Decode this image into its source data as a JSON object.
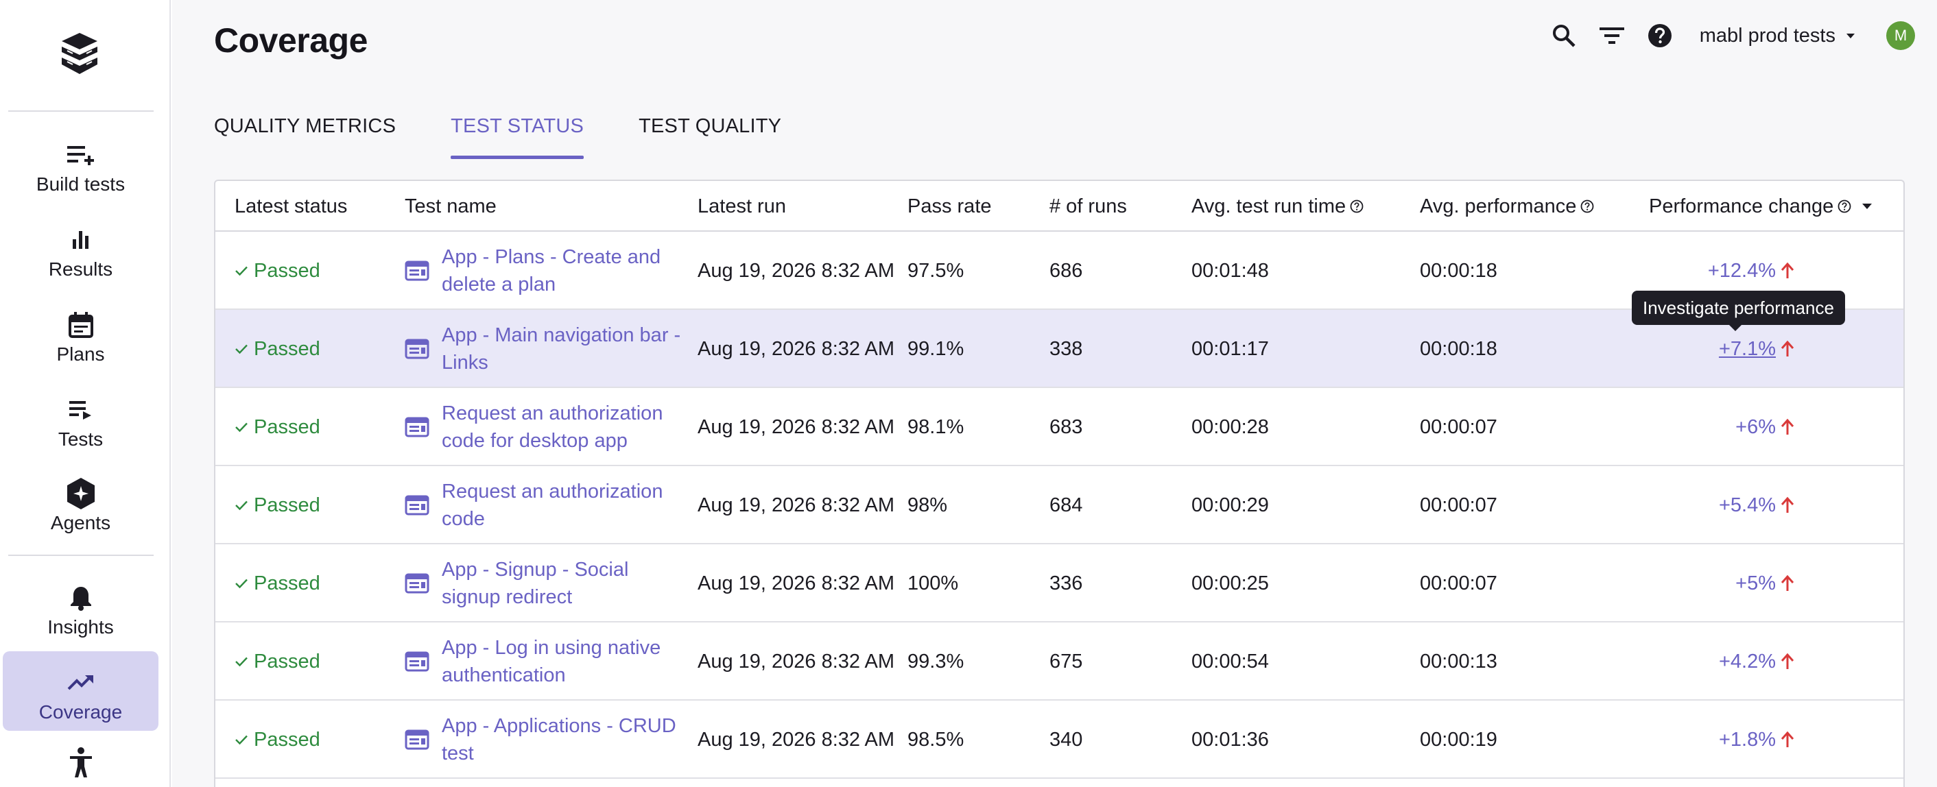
{
  "sidebar": {
    "logo_name": "mabl-logo",
    "items": [
      {
        "label": "Build tests",
        "icon": "playlist-add-icon",
        "active": false
      },
      {
        "label": "Results",
        "icon": "bar-chart-icon",
        "active": false
      },
      {
        "label": "Plans",
        "icon": "calendar-icon",
        "active": false
      },
      {
        "label": "Tests",
        "icon": "playlist-play-icon",
        "active": false
      },
      {
        "label": "Agents",
        "icon": "sparkle-hexagon-icon",
        "active": false
      },
      {
        "label": "Insights",
        "icon": "bell-icon",
        "active": false
      },
      {
        "label": "Coverage",
        "icon": "trending-up-icon",
        "active": true
      },
      {
        "label": "",
        "icon": "accessibility-icon",
        "active": false
      }
    ]
  },
  "header": {
    "title": "Coverage",
    "workspace": "mabl prod tests",
    "avatar_initial": "M",
    "avatar_color": "#5f9e3a"
  },
  "tabs": [
    {
      "label": "QUALITY METRICS",
      "active": false
    },
    {
      "label": "TEST STATUS",
      "active": true
    },
    {
      "label": "TEST QUALITY",
      "active": false
    }
  ],
  "table": {
    "columns": [
      "Latest status",
      "Test name",
      "Latest run",
      "Pass rate",
      "# of runs",
      "Avg. test run time",
      "Avg. performance",
      "Performance change"
    ],
    "rows": [
      {
        "status": "Passed",
        "name": "App - Plans - Create and delete a plan",
        "latest_run": "Aug 19, 2026 8:32 AM",
        "pass_rate": "97.5%",
        "runs": "686",
        "avg_time": "00:01:48",
        "avg_perf": "00:00:18",
        "perf_change": "+12.4%"
      },
      {
        "status": "Passed",
        "name": "App - Main navigation bar - Links",
        "latest_run": "Aug 19, 2026 8:32 AM",
        "pass_rate": "99.1%",
        "runs": "338",
        "avg_time": "00:01:17",
        "avg_perf": "00:00:18",
        "perf_change": "+7.1%"
      },
      {
        "status": "Passed",
        "name": "Request an authorization code for desktop app",
        "latest_run": "Aug 19, 2026 8:32 AM",
        "pass_rate": "98.1%",
        "runs": "683",
        "avg_time": "00:00:28",
        "avg_perf": "00:00:07",
        "perf_change": "+6%"
      },
      {
        "status": "Passed",
        "name": "Request an authorization code",
        "latest_run": "Aug 19, 2026 8:32 AM",
        "pass_rate": "98%",
        "runs": "684",
        "avg_time": "00:00:29",
        "avg_perf": "00:00:07",
        "perf_change": "+5.4%"
      },
      {
        "status": "Passed",
        "name": "App - Signup - Social signup redirect",
        "latest_run": "Aug 19, 2026 8:32 AM",
        "pass_rate": "100%",
        "runs": "336",
        "avg_time": "00:00:25",
        "avg_perf": "00:00:07",
        "perf_change": "+5%"
      },
      {
        "status": "Passed",
        "name": "App - Log in using native authentication",
        "latest_run": "Aug 19, 2026 8:32 AM",
        "pass_rate": "99.3%",
        "runs": "675",
        "avg_time": "00:00:54",
        "avg_perf": "00:00:13",
        "perf_change": "+4.2%"
      },
      {
        "status": "Passed",
        "name": "App - Applications - CRUD test",
        "latest_run": "Aug 19, 2026 8:32 AM",
        "pass_rate": "98.5%",
        "runs": "340",
        "avg_time": "00:01:36",
        "avg_perf": "00:00:19",
        "perf_change": "+1.8%"
      }
    ]
  },
  "tooltip": {
    "text": "Investigate performance"
  },
  "colors": {
    "accent": "#6a62c4",
    "passed": "#2e8b3e",
    "increase": "#d93a3a"
  }
}
